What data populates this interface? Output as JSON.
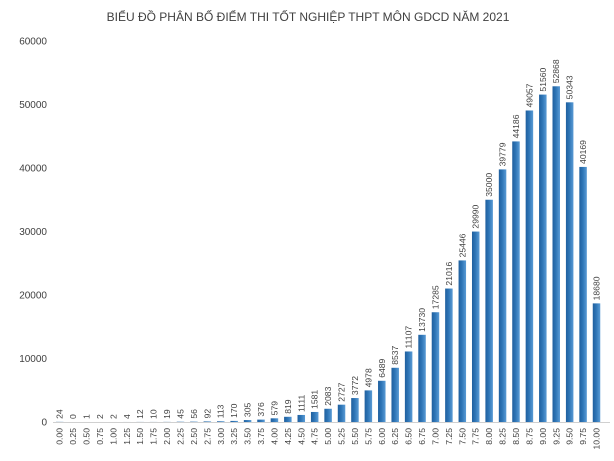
{
  "chart_data": {
    "type": "bar",
    "title": "BIỂU ĐỒ PHÂN BỐ ĐIỂM THI TỐT NGHIỆP THPT MÔN GDCD NĂM 2021",
    "xlabel": "",
    "ylabel": "",
    "ylim": [
      0,
      60000
    ],
    "yticks": [
      "0",
      "10000",
      "20000",
      "30000",
      "40000",
      "50000",
      "60000"
    ],
    "grid": false,
    "bar_color": "#2e75b6",
    "categories": [
      "0.00",
      "0.25",
      "0.50",
      "0.75",
      "1.00",
      "1.25",
      "1.50",
      "1.75",
      "2.00",
      "2.25",
      "2.50",
      "2.75",
      "3.00",
      "3.25",
      "3.50",
      "3.75",
      "4.00",
      "4.25",
      "4.50",
      "4.75",
      "5.00",
      "5.25",
      "5.50",
      "5.75",
      "6.00",
      "6.25",
      "6.50",
      "6.75",
      "7.00",
      "7.25",
      "7.50",
      "7.75",
      "8.00",
      "8.25",
      "8.50",
      "8.75",
      "9.00",
      "9.25",
      "9.50",
      "9.75",
      "10.00"
    ],
    "values": [
      24,
      0,
      1,
      2,
      2,
      4,
      12,
      10,
      19,
      45,
      56,
      92,
      113,
      170,
      305,
      376,
      579,
      819,
      1111,
      1581,
      2083,
      2727,
      3772,
      4978,
      6489,
      8537,
      11107,
      13730,
      17285,
      21016,
      25446,
      29990,
      35000,
      39779,
      44186,
      49057,
      51560,
      52868,
      50343,
      40169,
      18680
    ]
  }
}
